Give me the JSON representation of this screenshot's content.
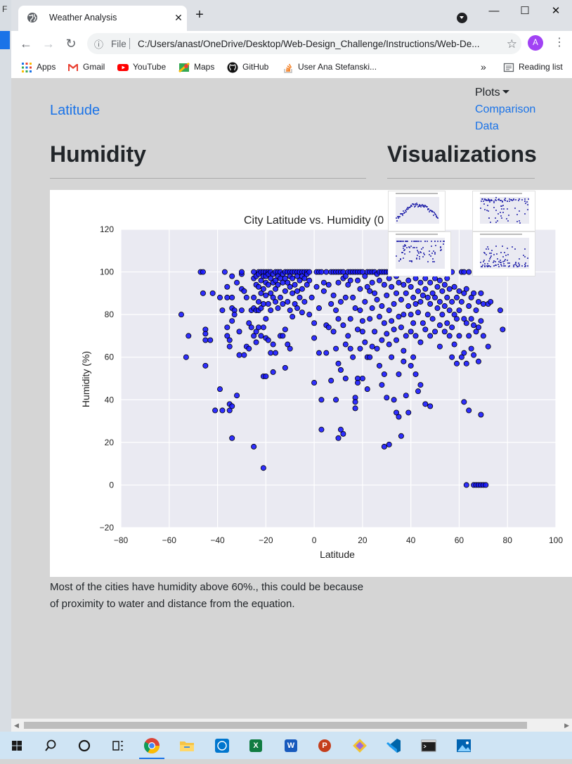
{
  "desktop": {
    "edge_letter": "F"
  },
  "browser": {
    "tab_title": "Weather Analysis",
    "tab_close_glyph": "✕",
    "new_tab_glyph": "+",
    "window_controls": {
      "minimize": "—",
      "maximize": "☐",
      "close": "✕"
    },
    "file_label": "File",
    "url": "C:/Users/anast/OneDrive/Desktop/Web-Design_Challenge/Instructions/Web-De...",
    "avatar_initial": "A",
    "bookmarks": [
      {
        "label": "Apps",
        "icon": "apps-grid-icon"
      },
      {
        "label": "Gmail",
        "icon": "gmail-icon"
      },
      {
        "label": "YouTube",
        "icon": "youtube-icon"
      },
      {
        "label": "Maps",
        "icon": "maps-icon"
      },
      {
        "label": "GitHub",
        "icon": "github-icon"
      },
      {
        "label": "User Ana Stefanski...",
        "icon": "stackoverflow-icon"
      }
    ],
    "overflow_glyph": "»",
    "reading_list": "Reading list"
  },
  "page": {
    "nav": {
      "latitude": "Latitude",
      "plots": "Plots",
      "comparison": "Comparison",
      "data": "Data"
    },
    "heading_left": "Humidity",
    "heading_right": "Visualizations",
    "caption": "Most of the cities have humidity above 60%., this could be because of proximity to water and distance from the equation."
  },
  "chart_data": {
    "type": "scatter",
    "title": "City Latitude vs. Humidity (0",
    "xlabel": "Latitude",
    "ylabel": "Humidity (%)",
    "xlim": [
      -80,
      100
    ],
    "ylim": [
      -20,
      120
    ],
    "x_ticks": [
      -80,
      -60,
      -40,
      -20,
      0,
      20,
      40,
      60,
      80,
      100
    ],
    "y_ticks": [
      -20,
      0,
      20,
      40,
      60,
      80,
      100,
      120
    ],
    "grid": true,
    "marker_color": "#1a1aff",
    "background": "#eaeaf2",
    "points": [
      [
        -55,
        80
      ],
      [
        -53,
        60
      ],
      [
        -52,
        70
      ],
      [
        -47,
        100
      ],
      [
        -46,
        100
      ],
      [
        -46,
        90
      ],
      [
        -45,
        73
      ],
      [
        -45,
        71
      ],
      [
        -45,
        68
      ],
      [
        -45,
        56
      ],
      [
        -43,
        68
      ],
      [
        -42,
        90
      ],
      [
        -41,
        35
      ],
      [
        -39,
        45
      ],
      [
        -39,
        88
      ],
      [
        -38,
        82
      ],
      [
        -38,
        35
      ],
      [
        -37,
        100
      ],
      [
        -36,
        93
      ],
      [
        -36,
        88
      ],
      [
        -36,
        74
      ],
      [
        -36,
        70
      ],
      [
        -35,
        68
      ],
      [
        -35,
        65
      ],
      [
        -35,
        38
      ],
      [
        -35,
        35
      ],
      [
        -34,
        98
      ],
      [
        -34,
        88
      ],
      [
        -34,
        83
      ],
      [
        -34,
        77
      ],
      [
        -34,
        37
      ],
      [
        -34,
        22
      ],
      [
        -33,
        82
      ],
      [
        -33,
        80
      ],
      [
        -32,
        95
      ],
      [
        -32,
        42
      ],
      [
        -31,
        72
      ],
      [
        -31,
        61
      ],
      [
        -30,
        99
      ],
      [
        -30,
        92
      ],
      [
        -30,
        82
      ],
      [
        -30,
        100
      ],
      [
        -29,
        91
      ],
      [
        -29,
        61
      ],
      [
        -28,
        88
      ],
      [
        -28,
        65
      ],
      [
        -27,
        76
      ],
      [
        -27,
        64
      ],
      [
        -26,
        82
      ],
      [
        -26,
        74
      ],
      [
        -25,
        18
      ],
      [
        -25,
        100
      ],
      [
        -25,
        97
      ],
      [
        -25,
        88
      ],
      [
        -25,
        83
      ],
      [
        -25,
        70
      ],
      [
        -24,
        98
      ],
      [
        -24,
        94
      ],
      [
        -24,
        82
      ],
      [
        -24,
        72
      ],
      [
        -24,
        67
      ],
      [
        -23,
        100
      ],
      [
        -23,
        99
      ],
      [
        -23,
        93
      ],
      [
        -23,
        86
      ],
      [
        -23,
        82
      ],
      [
        -23,
        74
      ],
      [
        -22,
        100
      ],
      [
        -22,
        96
      ],
      [
        -22,
        90
      ],
      [
        -22,
        83
      ],
      [
        -22,
        70
      ],
      [
        -21,
        100
      ],
      [
        -21,
        98
      ],
      [
        -21,
        92
      ],
      [
        -21,
        85
      ],
      [
        -21,
        74
      ],
      [
        -21,
        51
      ],
      [
        -21,
        8
      ],
      [
        -20,
        100
      ],
      [
        -20,
        98
      ],
      [
        -20,
        95
      ],
      [
        -20,
        89
      ],
      [
        -20,
        78
      ],
      [
        -20,
        69
      ],
      [
        -20,
        51
      ],
      [
        -19,
        100
      ],
      [
        -19,
        99
      ],
      [
        -19,
        94
      ],
      [
        -19,
        85
      ],
      [
        -19,
        68
      ],
      [
        -18,
        100
      ],
      [
        -18,
        97
      ],
      [
        -18,
        90
      ],
      [
        -18,
        82
      ],
      [
        -18,
        62
      ],
      [
        -17,
        99
      ],
      [
        -17,
        95
      ],
      [
        -17,
        88
      ],
      [
        -17,
        66
      ],
      [
        -17,
        53
      ],
      [
        -16,
        100
      ],
      [
        -16,
        96
      ],
      [
        -16,
        92
      ],
      [
        -16,
        86
      ],
      [
        -16,
        62
      ],
      [
        -15,
        100
      ],
      [
        -15,
        98
      ],
      [
        -15,
        94
      ],
      [
        -15,
        83
      ],
      [
        -14,
        100
      ],
      [
        -14,
        97
      ],
      [
        -14,
        88
      ],
      [
        -14,
        70
      ],
      [
        -13,
        99
      ],
      [
        -13,
        95
      ],
      [
        -13,
        85
      ],
      [
        -13,
        70
      ],
      [
        -12,
        100
      ],
      [
        -12,
        97
      ],
      [
        -12,
        91
      ],
      [
        -12,
        73
      ],
      [
        -12,
        55
      ],
      [
        -11,
        100
      ],
      [
        -11,
        95
      ],
      [
        -11,
        86
      ],
      [
        -11,
        66
      ],
      [
        -10,
        100
      ],
      [
        -10,
        98
      ],
      [
        -10,
        93
      ],
      [
        -10,
        82
      ],
      [
        -10,
        64
      ],
      [
        -9,
        100
      ],
      [
        -9,
        97
      ],
      [
        -9,
        90
      ],
      [
        -9,
        79
      ],
      [
        -8,
        100
      ],
      [
        -8,
        94
      ],
      [
        -8,
        85
      ],
      [
        -7,
        100
      ],
      [
        -7,
        98
      ],
      [
        -7,
        91
      ],
      [
        -7,
        83
      ],
      [
        -6,
        100
      ],
      [
        -6,
        96
      ],
      [
        -6,
        88
      ],
      [
        -5,
        100
      ],
      [
        -5,
        98
      ],
      [
        -5,
        92
      ],
      [
        -5,
        81
      ],
      [
        -4,
        100
      ],
      [
        -4,
        97
      ],
      [
        -4,
        86
      ],
      [
        -3,
        100
      ],
      [
        -3,
        99
      ],
      [
        -3,
        94
      ],
      [
        -2,
        100
      ],
      [
        -2,
        96
      ],
      [
        -2,
        80
      ],
      [
        -1,
        88
      ],
      [
        0,
        76
      ],
      [
        0,
        69
      ],
      [
        0,
        48
      ],
      [
        1,
        100
      ],
      [
        1,
        93
      ],
      [
        2,
        100
      ],
      [
        2,
        83
      ],
      [
        2,
        62
      ],
      [
        3,
        26
      ],
      [
        3,
        40
      ],
      [
        3,
        100
      ],
      [
        4,
        95
      ],
      [
        4,
        91
      ],
      [
        5,
        100
      ],
      [
        5,
        75
      ],
      [
        5,
        62
      ],
      [
        6,
        94
      ],
      [
        6,
        74
      ],
      [
        7,
        100
      ],
      [
        7,
        85
      ],
      [
        7,
        49
      ],
      [
        8,
        100
      ],
      [
        8,
        89
      ],
      [
        8,
        72
      ],
      [
        9,
        100
      ],
      [
        9,
        82
      ],
      [
        9,
        64
      ],
      [
        9,
        40
      ],
      [
        10,
        100
      ],
      [
        10,
        95
      ],
      [
        10,
        78
      ],
      [
        10,
        57
      ],
      [
        10,
        22
      ],
      [
        11,
        100
      ],
      [
        11,
        86
      ],
      [
        11,
        54
      ],
      [
        11,
        26
      ],
      [
        12,
        100
      ],
      [
        12,
        97
      ],
      [
        12,
        75
      ],
      [
        12,
        24
      ],
      [
        13,
        98
      ],
      [
        13,
        88
      ],
      [
        13,
        66
      ],
      [
        13,
        50
      ],
      [
        14,
        100
      ],
      [
        14,
        94
      ],
      [
        14,
        70
      ],
      [
        15,
        100
      ],
      [
        15,
        96
      ],
      [
        15,
        78
      ],
      [
        15,
        64
      ],
      [
        16,
        100
      ],
      [
        16,
        88
      ],
      [
        16,
        60
      ],
      [
        17,
        100
      ],
      [
        17,
        83
      ],
      [
        17,
        36
      ],
      [
        17,
        41
      ],
      [
        17,
        39
      ],
      [
        18,
        100
      ],
      [
        18,
        96
      ],
      [
        18,
        73
      ],
      [
        18,
        50
      ],
      [
        18,
        48
      ],
      [
        19,
        100
      ],
      [
        19,
        92
      ],
      [
        19,
        82
      ],
      [
        19,
        64
      ],
      [
        20,
        100
      ],
      [
        20,
        77
      ],
      [
        20,
        72
      ],
      [
        20,
        50
      ],
      [
        21,
        98
      ],
      [
        21,
        86
      ],
      [
        21,
        67
      ],
      [
        22,
        100
      ],
      [
        22,
        93
      ],
      [
        22,
        60
      ],
      [
        22,
        45
      ],
      [
        23,
        100
      ],
      [
        23,
        91
      ],
      [
        23,
        78
      ],
      [
        23,
        60
      ],
      [
        24,
        100
      ],
      [
        24,
        95
      ],
      [
        24,
        83
      ],
      [
        24,
        65
      ],
      [
        25,
        100
      ],
      [
        25,
        90
      ],
      [
        25,
        72
      ],
      [
        26,
        99
      ],
      [
        26,
        87
      ],
      [
        26,
        64
      ],
      [
        27,
        100
      ],
      [
        27,
        96
      ],
      [
        27,
        79
      ],
      [
        27,
        56
      ],
      [
        28,
        100
      ],
      [
        28,
        84
      ],
      [
        28,
        68
      ],
      [
        28,
        47
      ],
      [
        29,
        100
      ],
      [
        29,
        94
      ],
      [
        29,
        76
      ],
      [
        29,
        52
      ],
      [
        29,
        18
      ],
      [
        30,
        100
      ],
      [
        30,
        89
      ],
      [
        30,
        71
      ],
      [
        30,
        41
      ],
      [
        31,
        100
      ],
      [
        31,
        97
      ],
      [
        31,
        82
      ],
      [
        31,
        66
      ],
      [
        31,
        19
      ],
      [
        32,
        100
      ],
      [
        32,
        93
      ],
      [
        32,
        77
      ],
      [
        32,
        60
      ],
      [
        33,
        100
      ],
      [
        33,
        85
      ],
      [
        33,
        73
      ],
      [
        33,
        40
      ],
      [
        34,
        98
      ],
      [
        34,
        90
      ],
      [
        34,
        68
      ],
      [
        34,
        34
      ],
      [
        35,
        100
      ],
      [
        35,
        95
      ],
      [
        35,
        79
      ],
      [
        35,
        52
      ],
      [
        35,
        32
      ],
      [
        36,
        100
      ],
      [
        36,
        87
      ],
      [
        36,
        74
      ],
      [
        36,
        23
      ],
      [
        37,
        94
      ],
      [
        37,
        80
      ],
      [
        37,
        63
      ],
      [
        37,
        58
      ],
      [
        38,
        100
      ],
      [
        38,
        90
      ],
      [
        38,
        70
      ],
      [
        38,
        42
      ],
      [
        39,
        100
      ],
      [
        39,
        96
      ],
      [
        39,
        84
      ],
      [
        39,
        34
      ],
      [
        40,
        93
      ],
      [
        40,
        80
      ],
      [
        40,
        72
      ],
      [
        40,
        56
      ],
      [
        41,
        100
      ],
      [
        41,
        88
      ],
      [
        41,
        76
      ],
      [
        41,
        60
      ],
      [
        42,
        97
      ],
      [
        42,
        85
      ],
      [
        42,
        70
      ],
      [
        42,
        52
      ],
      [
        43,
        100
      ],
      [
        43,
        91
      ],
      [
        43,
        81
      ],
      [
        43,
        44
      ],
      [
        44,
        95
      ],
      [
        44,
        86
      ],
      [
        44,
        67
      ],
      [
        44,
        47
      ],
      [
        45,
        100
      ],
      [
        45,
        89
      ],
      [
        45,
        76
      ],
      [
        46,
        97
      ],
      [
        46,
        92
      ],
      [
        46,
        73
      ],
      [
        46,
        38
      ],
      [
        47,
        100
      ],
      [
        47,
        88
      ],
      [
        47,
        80
      ],
      [
        48,
        95
      ],
      [
        48,
        85
      ],
      [
        48,
        70
      ],
      [
        48,
        37
      ],
      [
        49,
        100
      ],
      [
        49,
        90
      ],
      [
        49,
        78
      ],
      [
        50,
        97
      ],
      [
        50,
        88
      ],
      [
        50,
        72
      ],
      [
        51,
        100
      ],
      [
        51,
        93
      ],
      [
        51,
        83
      ],
      [
        52,
        96
      ],
      [
        52,
        86
      ],
      [
        52,
        75
      ],
      [
        52,
        65
      ],
      [
        53,
        100
      ],
      [
        53,
        91
      ],
      [
        53,
        80
      ],
      [
        54,
        94
      ],
      [
        54,
        84
      ],
      [
        54,
        72
      ],
      [
        55,
        97
      ],
      [
        55,
        88
      ],
      [
        55,
        76
      ],
      [
        56,
        92
      ],
      [
        56,
        82
      ],
      [
        56,
        70
      ],
      [
        57,
        100
      ],
      [
        57,
        86
      ],
      [
        57,
        74
      ],
      [
        57,
        60
      ],
      [
        58,
        93
      ],
      [
        58,
        80
      ],
      [
        58,
        66
      ],
      [
        59,
        88
      ],
      [
        59,
        78
      ],
      [
        59,
        57
      ],
      [
        60,
        91
      ],
      [
        60,
        82
      ],
      [
        60,
        70
      ],
      [
        61,
        100
      ],
      [
        61,
        86
      ],
      [
        61,
        60
      ],
      [
        62,
        90
      ],
      [
        62,
        78
      ],
      [
        62,
        62
      ],
      [
        62,
        39
      ],
      [
        62,
        100
      ],
      [
        63,
        92
      ],
      [
        63,
        76
      ],
      [
        63,
        57
      ],
      [
        63,
        0
      ],
      [
        64,
        100
      ],
      [
        64,
        84
      ],
      [
        64,
        70
      ],
      [
        64,
        35
      ],
      [
        65,
        88
      ],
      [
        65,
        78
      ],
      [
        65,
        64
      ],
      [
        66,
        90
      ],
      [
        66,
        75
      ],
      [
        66,
        61
      ],
      [
        66,
        0
      ],
      [
        67,
        82
      ],
      [
        67,
        72
      ],
      [
        67,
        0
      ],
      [
        68,
        86
      ],
      [
        68,
        74
      ],
      [
        68,
        58
      ],
      [
        68,
        0
      ],
      [
        69,
        90
      ],
      [
        69,
        77
      ],
      [
        69,
        33
      ],
      [
        69,
        0
      ],
      [
        70,
        85
      ],
      [
        70,
        70
      ],
      [
        70,
        0
      ],
      [
        71,
        0
      ],
      [
        72,
        85
      ],
      [
        72,
        65
      ],
      [
        73,
        86
      ],
      [
        77,
        82
      ],
      [
        78,
        73
      ]
    ]
  },
  "thumbnails": [
    {
      "name": "temperature-thumbnail"
    },
    {
      "name": "cloudiness-thumbnail"
    },
    {
      "name": "humidity-thumbnail"
    },
    {
      "name": "wind-speed-thumbnail"
    }
  ],
  "taskbar": [
    {
      "icon": "windows-start-icon"
    },
    {
      "icon": "search-icon"
    },
    {
      "icon": "cortana-icon"
    },
    {
      "icon": "task-view-icon"
    },
    {
      "icon": "chrome-icon"
    },
    {
      "icon": "file-explorer-icon"
    },
    {
      "icon": "dell-icon"
    },
    {
      "icon": "excel-icon",
      "label": "X"
    },
    {
      "icon": "word-icon",
      "label": "W"
    },
    {
      "icon": "powerpoint-icon",
      "label": "P"
    },
    {
      "icon": "git-icon"
    },
    {
      "icon": "vscode-icon"
    },
    {
      "icon": "terminal-icon"
    },
    {
      "icon": "photos-icon"
    }
  ]
}
